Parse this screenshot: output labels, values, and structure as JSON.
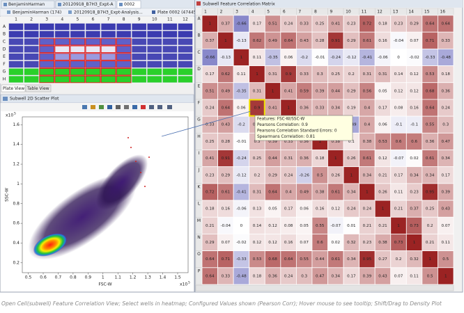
{
  "tabs": [
    "BenjaminHarman",
    "20120918_B7H3_Expt-A",
    "0002"
  ],
  "breadcrumb": [
    "BenjaminHarman (174)",
    "20120918_B7H3_Expt-Analysis...",
    "Plate 0002 (47445)"
  ],
  "plate": {
    "rows": [
      "A",
      "B",
      "C",
      "D",
      "E",
      "F",
      "G",
      "H"
    ],
    "columns": [
      "1",
      "2",
      "3",
      "4",
      "5",
      "6",
      "7",
      "8",
      "9",
      "10",
      "11",
      "12"
    ]
  },
  "view_tabs": [
    "Plate View",
    "Table View"
  ],
  "scatter_panel": {
    "title": "Subwell 2D Scatter Plot"
  },
  "chart_data": {
    "type": "scatter",
    "xlabel": "FSC-W",
    "ylabel": "SSC-W",
    "xlim": [
      0.46,
      1.57
    ],
    "ylim": [
      0.1,
      1.68
    ],
    "xticks": [
      0.5,
      0.6,
      0.7,
      0.8,
      0.9,
      1,
      1.1,
      1.2,
      1.3,
      1.4,
      1.5
    ],
    "yticks": [
      0.2,
      0.4,
      0.6,
      0.8,
      1,
      1.2,
      1.4,
      1.6
    ],
    "x_multiplier": {
      "base": "x10",
      "exponent": "5"
    },
    "y_multiplier": {
      "base": "x10",
      "exponent": "5"
    }
  },
  "matrix": {
    "title": "Subwell Feature Correlation Matrix",
    "rows": [
      "A",
      "B",
      "C",
      "D",
      "E",
      "F",
      "G",
      "H",
      "I",
      "J",
      "K",
      "L",
      "M",
      "N",
      "O",
      "P"
    ],
    "columns": [
      "1",
      "2",
      "3",
      "4",
      "5",
      "6",
      "7",
      "8",
      "9",
      "10",
      "11",
      "12",
      "13",
      "14",
      "15",
      "16"
    ],
    "values": [
      [
        1,
        0.37,
        -0.66,
        0.17,
        0.51,
        0.24,
        0.33,
        0.25,
        0.41,
        0.23,
        0.72,
        0.18,
        0.23,
        0.29,
        0.64,
        0.64
      ],
      [
        0.37,
        1,
        -0.13,
        0.62,
        0.49,
        0.64,
        0.43,
        0.28,
        0.91,
        0.29,
        0.61,
        0.16,
        -0.04,
        0.07,
        0.71,
        0.33
      ],
      [
        -0.66,
        -0.13,
        1,
        0.11,
        -0.35,
        0.06,
        -0.2,
        -0.01,
        -0.24,
        -0.12,
        -0.41,
        -0.06,
        0,
        -0.02,
        -0.33,
        -0.48
      ],
      [
        0.17,
        0.62,
        0.11,
        1,
        0.31,
        0.9,
        0.33,
        0.3,
        0.25,
        0.2,
        0.31,
        0.31,
        0.14,
        0.12,
        0.53,
        0.18
      ],
      [
        0.51,
        0.49,
        -0.35,
        0.31,
        1,
        0.41,
        0.59,
        0.39,
        0.44,
        0.29,
        0.56,
        0.05,
        0.12,
        0.12,
        0.68,
        0.36
      ],
      [
        0.24,
        0.64,
        0.06,
        0.9,
        0.41,
        1,
        0.36,
        0.33,
        0.34,
        0.19,
        0.4,
        0.17,
        0.08,
        0.16,
        0.64,
        0.24
      ],
      [
        0.33,
        0.43,
        -0.2,
        0.33,
        0.59,
        0.36,
        1,
        0.36,
        0.26,
        -0.49,
        0.4,
        0.06,
        -0.1,
        -0.1,
        0.55,
        0.3
      ],
      [
        0.25,
        0.28,
        -0.01,
        0.3,
        0.39,
        0.33,
        0.36,
        1,
        0.38,
        0.1,
        0.38,
        0.53,
        0.6,
        0.6,
        0.36,
        0.47
      ],
      [
        0.41,
        0.91,
        -0.24,
        0.25,
        0.44,
        0.31,
        0.36,
        0.18,
        1,
        0.26,
        0.61,
        0.12,
        -0.07,
        0.02,
        0.61,
        0.34
      ],
      [
        0.23,
        0.29,
        -0.12,
        0.2,
        0.29,
        0.24,
        -0.26,
        0.5,
        0.26,
        1,
        0.34,
        0.21,
        0.17,
        0.34,
        0.34,
        0.17
      ],
      [
        0.72,
        0.61,
        -0.41,
        0.31,
        0.64,
        0.4,
        0.49,
        0.38,
        0.61,
        0.34,
        1,
        0.26,
        0.11,
        0.23,
        0.95,
        0.39
      ],
      [
        0.18,
        0.16,
        -0.06,
        0.13,
        0.05,
        0.17,
        0.06,
        0.16,
        0.12,
        0.24,
        0.24,
        1,
        0.21,
        0.37,
        0.25,
        0.43
      ],
      [
        0.21,
        -0.04,
        0,
        0.14,
        0.12,
        0.08,
        0.05,
        0.55,
        -0.07,
        0.01,
        0.21,
        0.21,
        1,
        0.73,
        0.2,
        0.07
      ],
      [
        0.29,
        0.07,
        -0.02,
        0.12,
        0.12,
        0.16,
        0.07,
        0.6,
        0.02,
        0.32,
        0.23,
        0.38,
        0.73,
        1,
        0.21,
        0.11
      ],
      [
        0.64,
        0.71,
        -0.33,
        0.53,
        0.68,
        0.64,
        0.55,
        0.44,
        0.61,
        0.34,
        0.95,
        0.27,
        0.2,
        0.32,
        1,
        0.5
      ],
      [
        0.64,
        0.33,
        -0.48,
        0.18,
        0.36,
        0.24,
        0.3,
        0.47,
        0.34,
        0.17,
        0.39,
        0.43,
        0.07,
        0.11,
        0.5,
        1
      ]
    ]
  },
  "tooltip": {
    "lines": [
      "Features: FSC-W/SSC-W",
      "Pearsons Correlation: 0.9",
      "Pearsons Correlation Standard Errors: 0",
      "Spearmans Correlation: 0.81"
    ]
  },
  "caption": "Open Cell(subwell) Feature Correlation View; Select wells in heatmap; Configured Values shown (Pearson Corr); Hover mouse to see tooltip; Shift/Drag to Density Plot"
}
